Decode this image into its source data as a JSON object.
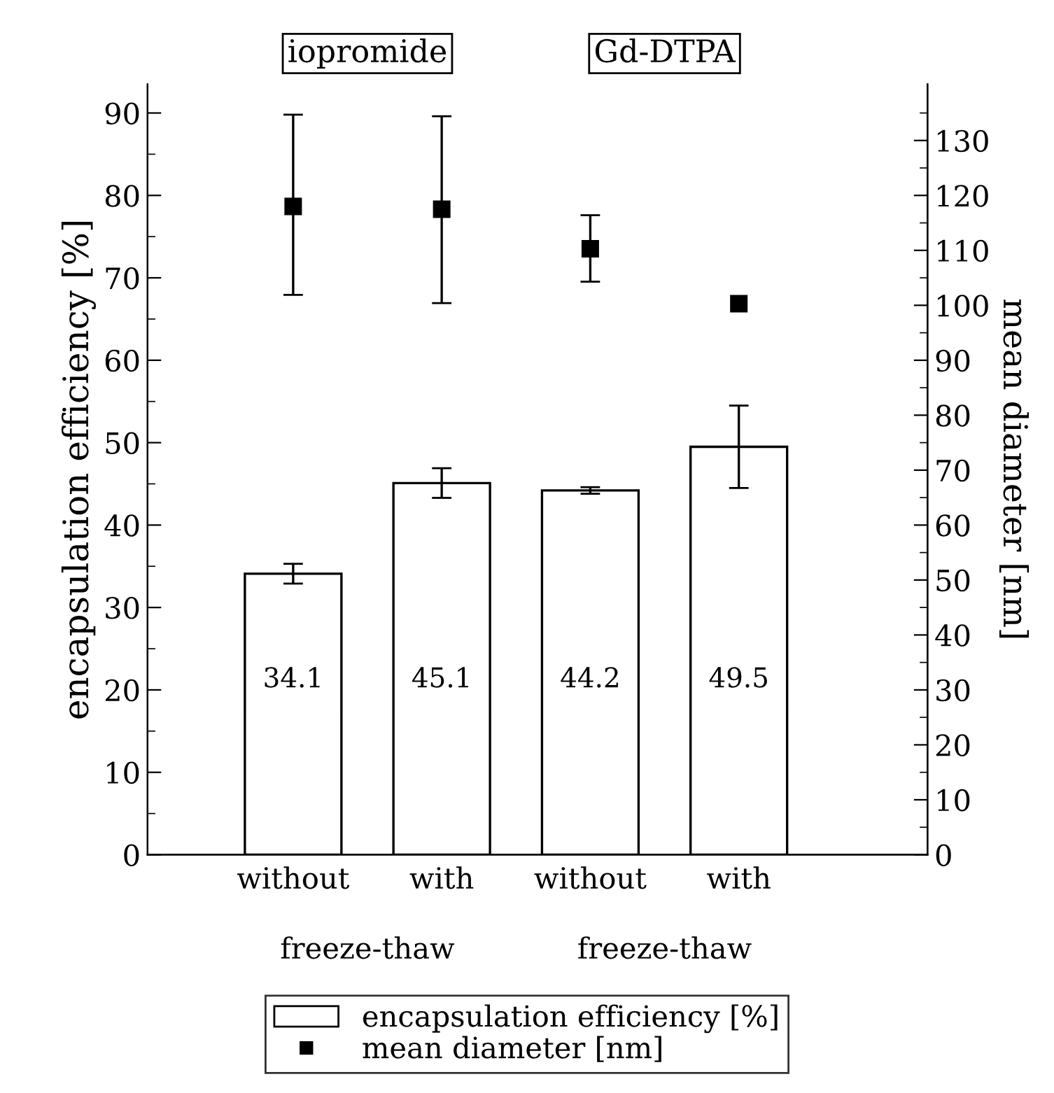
{
  "chart_data": {
    "type": "bar",
    "ylabel": "encapsulation efficiency [%]",
    "y2label": "mean diameter [nm]",
    "categories": [
      "without",
      "with",
      "without",
      "with"
    ],
    "annotations": [
      "freeze-thaw",
      "freeze-thaw",
      "iopromide",
      "Gd-DTPA"
    ],
    "series": [
      {
        "name": "encapsulation efficiency [%]",
        "color": "#ffffff",
        "values": [
          34.1,
          45.1,
          44.2,
          49.5
        ],
        "value_labels": [
          "34.1",
          "45.1",
          "44.2",
          "49.5"
        ],
        "errors": [
          1.2,
          1.8,
          0.4,
          5.0
        ]
      },
      {
        "name": "mean diameter [nm]",
        "type": "scatter",
        "axis": "y2",
        "color": "#000000",
        "marker": "square",
        "values": [
          118.0,
          117.5,
          110.3,
          100.3
        ],
        "errors": [
          [
            101.9,
            134.7
          ],
          [
            100.4,
            134.4
          ],
          [
            104.3,
            116.4
          ],
          null
        ]
      }
    ],
    "ylim": [
      0,
      93.5
    ],
    "yticks": [
      0,
      10,
      20,
      30,
      40,
      50,
      60,
      70,
      80,
      90
    ],
    "y2lim": [
      0,
      140.25
    ],
    "y2ticks": [
      0,
      10,
      20,
      30,
      40,
      50,
      60,
      70,
      80,
      90,
      100,
      110,
      120,
      130
    ],
    "grid": false,
    "legend": "bottom"
  }
}
